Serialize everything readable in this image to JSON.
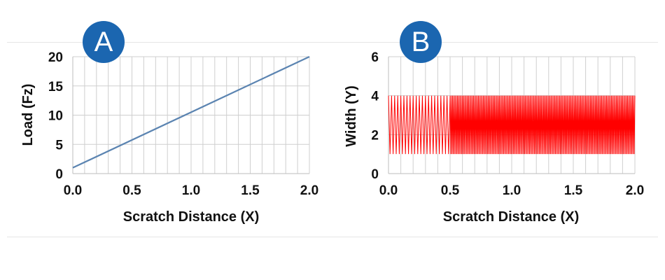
{
  "panels": [
    {
      "badge": "A"
    },
    {
      "badge": "B"
    }
  ],
  "chart_data": [
    {
      "type": "line",
      "title": "",
      "xlabel": "Scratch Distance (X)",
      "ylabel": "Load (Fz)",
      "xlim": [
        0.0,
        2.0
      ],
      "ylim": [
        0,
        20
      ],
      "xticks": [
        "0.0",
        "0.5",
        "1.0",
        "1.5",
        "2.0"
      ],
      "yticks": [
        "0",
        "5",
        "10",
        "15",
        "20"
      ],
      "grid": true,
      "series": [
        {
          "color": "#5b84b1",
          "x": [
            0.0,
            2.0
          ],
          "y": [
            1,
            20
          ]
        }
      ]
    },
    {
      "type": "line",
      "title": "",
      "xlabel": "Scratch Distance (X)",
      "ylabel": "Width (Y)",
      "xlim": [
        0.0,
        2.0
      ],
      "ylim": [
        0,
        6
      ],
      "xticks": [
        "0.0",
        "0.5",
        "1.0",
        "1.5",
        "2.0"
      ],
      "yticks": [
        "0",
        "2",
        "4",
        "6"
      ],
      "grid": true,
      "series": [
        {
          "color": "#ff0000",
          "pattern": "zigzag",
          "y_min": 1,
          "y_max": 4,
          "segments": [
            {
              "x_start": 0.0,
              "x_end": 0.5,
              "cycles": 20
            },
            {
              "x_start": 0.5,
              "x_end": 2.0,
              "cycles": 150
            }
          ]
        }
      ]
    }
  ]
}
